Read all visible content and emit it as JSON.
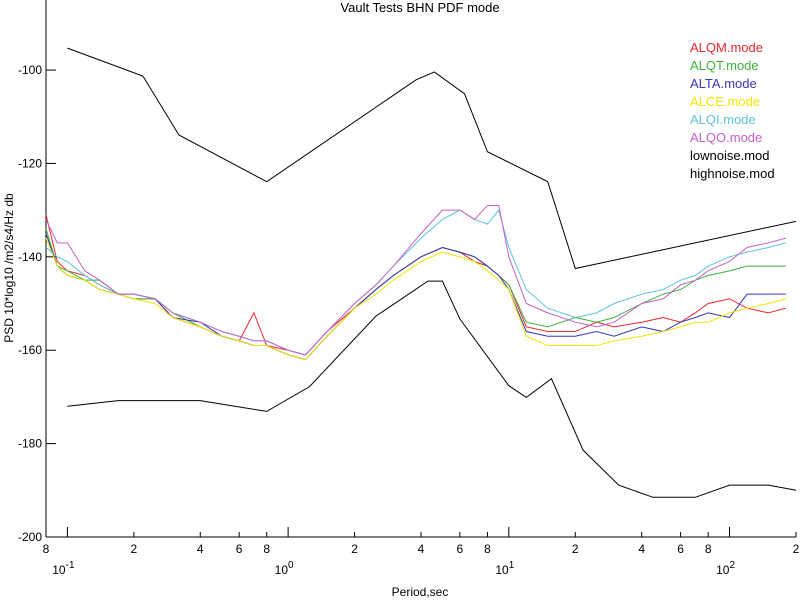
{
  "chart_data": {
    "type": "line",
    "title": "Vault Tests BHN PDF mode",
    "x_label": "Period,sec",
    "y_label": "PSD 10*log10 /m2/s4/Hz db",
    "xscale": "log",
    "xlim": [
      0.08,
      200
    ],
    "ylim": [
      -200,
      -85
    ],
    "yticks": [
      -200,
      -180,
      -160,
      -140,
      -120,
      -100
    ],
    "xticks": [
      {
        "value": 0.08,
        "label": "8"
      },
      {
        "value": 0.1,
        "label": "10",
        "exponent": "-1"
      },
      {
        "value": 0.2,
        "label": "2"
      },
      {
        "value": 0.4,
        "label": "4"
      },
      {
        "value": 0.6,
        "label": "6"
      },
      {
        "value": 0.8,
        "label": "8"
      },
      {
        "value": 1,
        "label": "10",
        "exponent": "0"
      },
      {
        "value": 2,
        "label": "2"
      },
      {
        "value": 4,
        "label": "4"
      },
      {
        "value": 6,
        "label": "6"
      },
      {
        "value": 8,
        "label": "8"
      },
      {
        "value": 10,
        "label": "10",
        "exponent": "1"
      },
      {
        "value": 20,
        "label": "2"
      },
      {
        "value": 40,
        "label": "4"
      },
      {
        "value": 60,
        "label": "6"
      },
      {
        "value": 80,
        "label": "8"
      },
      {
        "value": 100,
        "label": "10",
        "exponent": "2"
      },
      {
        "value": 200,
        "label": "2"
      }
    ],
    "x": [
      0.08,
      0.09,
      0.1,
      0.12,
      0.14,
      0.17,
      0.2,
      0.25,
      0.3,
      0.4,
      0.5,
      0.6,
      0.7,
      0.8,
      1.0,
      1.2,
      1.5,
      2,
      2.5,
      3,
      4,
      5,
      6,
      7,
      8,
      9,
      10,
      12,
      15,
      20,
      25,
      30,
      40,
      50,
      60,
      70,
      80,
      100,
      120,
      150,
      180
    ],
    "series": [
      {
        "name": "ALQM.mode",
        "color": "#e8282d",
        "values": [
          -131,
          -141,
          -143,
          -144,
          -146,
          -148,
          -149,
          -149,
          -153,
          -155,
          -157,
          -158,
          -152,
          -159,
          -160,
          -161,
          -156,
          -151,
          -147,
          -144,
          -140,
          -138,
          -139,
          -141,
          -142,
          -144,
          -146,
          -155,
          -156,
          -156,
          -154,
          -155,
          -154,
          -153,
          -154,
          -152,
          -150,
          -149,
          -151,
          -152,
          -151
        ]
      },
      {
        "name": "ALQT.mode",
        "color": "#3cb43c",
        "values": [
          -134,
          -142,
          -143,
          -145,
          -145,
          -148,
          -149,
          -149,
          -152,
          -155,
          -157,
          -158,
          -159,
          -159,
          -161,
          -162,
          -157,
          -151,
          -147,
          -144,
          -140,
          -138,
          -139,
          -140,
          -142,
          -144,
          -146,
          -154,
          -155,
          -153,
          -154,
          -153,
          -150,
          -148,
          -147,
          -145,
          -144,
          -143,
          -142,
          -142,
          -142
        ]
      },
      {
        "name": "ALTA.mode",
        "color": "#3838b8",
        "values": [
          -135,
          -142,
          -144,
          -145,
          -147,
          -148,
          -148,
          -149,
          -153,
          -154,
          -157,
          -158,
          -159,
          -159,
          -161,
          -162,
          -157,
          -151,
          -147,
          -144,
          -140,
          -138,
          -139,
          -140,
          -142,
          -144,
          -147,
          -156,
          -157,
          -157,
          -156,
          -157,
          -155,
          -156,
          -154,
          -153,
          -152,
          -153,
          -148,
          -148,
          -148
        ]
      },
      {
        "name": "ALCE.mode",
        "color": "#f2e600",
        "values": [
          -136,
          -142,
          -144,
          -145,
          -147,
          -148,
          -149,
          -150,
          -153,
          -155,
          -157,
          -158,
          -159,
          -159,
          -161,
          -162,
          -157,
          -151,
          -148,
          -145,
          -141,
          -139,
          -140,
          -141,
          -143,
          -145,
          -147,
          -157,
          -159,
          -159,
          -159,
          -158,
          -157,
          -156,
          -155,
          -154,
          -154,
          -152,
          -151,
          -150,
          -149
        ]
      },
      {
        "name": "ALQI.mode",
        "color": "#5cc4d8",
        "values": [
          -138,
          -140,
          -141,
          -144,
          -146,
          -148,
          -148,
          -149,
          -152,
          -154,
          -156,
          -157,
          -158,
          -158,
          -160,
          -161,
          -156,
          -150,
          -146,
          -142,
          -136,
          -132,
          -130,
          -132,
          -133,
          -130,
          -138,
          -147,
          -151,
          -153,
          -152,
          -150,
          -148,
          -147,
          -145,
          -144,
          -142,
          -140,
          -139,
          -138,
          -137
        ]
      },
      {
        "name": "ALQO.mode",
        "color": "#c860c8",
        "values": [
          -132,
          -137,
          -137,
          -143,
          -145,
          -148,
          -148,
          -149,
          -152,
          -154,
          -156,
          -157,
          -158,
          -158,
          -160,
          -161,
          -156,
          -150,
          -146,
          -142,
          -135,
          -130,
          -130,
          -132,
          -129,
          -129,
          -140,
          -150,
          -152,
          -154,
          -155,
          -154,
          -150,
          -149,
          -146,
          -145,
          -143,
          -141,
          -138,
          -137,
          -136
        ]
      },
      {
        "name": "lownoise.mod",
        "color": "#000000",
        "x": [
          0.1,
          0.17,
          0.4,
          0.8,
          1.25,
          2.5,
          4.3,
          5,
          6,
          10,
          12,
          15.6,
          21.7,
          31.5,
          45,
          70,
          100,
          150,
          200
        ],
        "values": [
          -172,
          -170.8,
          -170.8,
          -173.1,
          -167.8,
          -152.7,
          -145.2,
          -145.2,
          -153.3,
          -167.6,
          -170.1,
          -166.1,
          -181.4,
          -188.9,
          -191.5,
          -191.5,
          -188.9,
          -188.9,
          -190
        ]
      },
      {
        "name": "highnoise.mod",
        "color": "#000000",
        "x": [
          0.1,
          0.22,
          0.32,
          0.8,
          3.8,
          4.6,
          6.3,
          8,
          15,
          20,
          200
        ],
        "values": [
          -95.3,
          -101.3,
          -113.9,
          -123.9,
          -102.1,
          -100.4,
          -105.1,
          -117.5,
          -123.9,
          -142.5,
          -132.4
        ]
      }
    ]
  }
}
